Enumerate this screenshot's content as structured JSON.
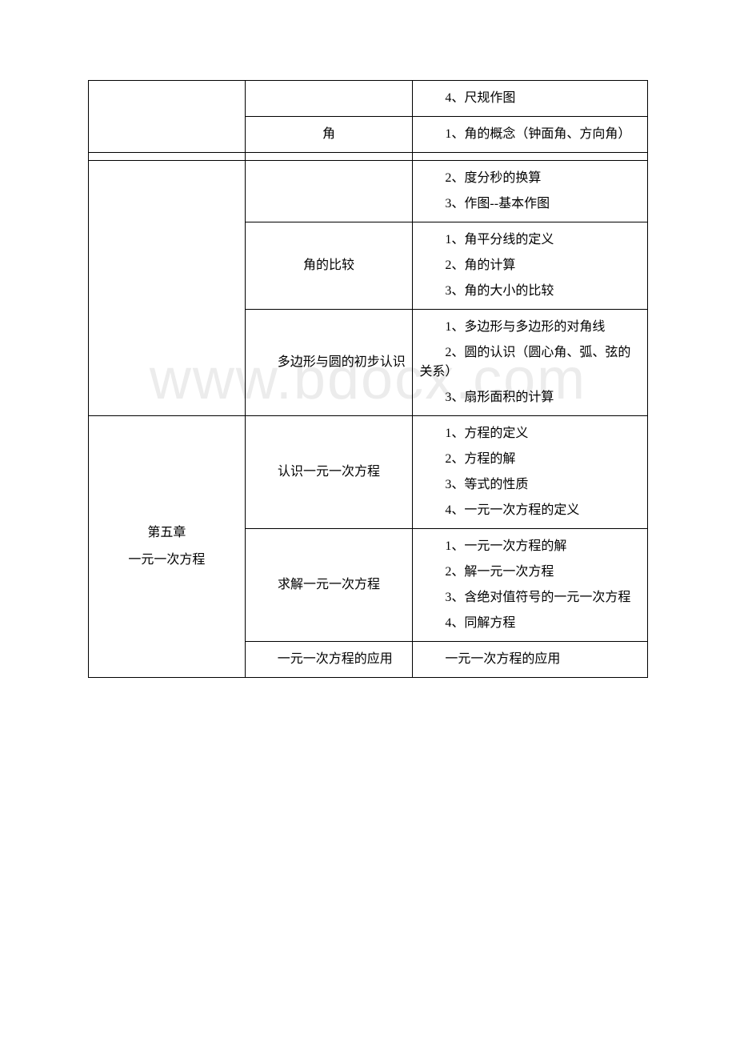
{
  "watermark": "www.bdocx.com",
  "table": {
    "rows": [
      {
        "col1": "",
        "col2": "",
        "col3_items": [
          "4、尺规作图"
        ]
      },
      {
        "col1": "",
        "col2": "角",
        "col3_items": [
          "1、角的概念（钟面角、方向角）"
        ]
      },
      {
        "spacer": true
      },
      {
        "col1": "",
        "col2": "",
        "col3_items": [
          "2、度分秒的换算",
          "3、作图--基本作图"
        ]
      },
      {
        "col1": "",
        "col2": "角的比较",
        "col3_items": [
          "1、角平分线的定义",
          "2、角的计算",
          "3、角的大小的比较"
        ]
      },
      {
        "col1": "",
        "col2": "多边形与圆的初步认识",
        "col3_items": [
          "1、多边形与多边形的对角线",
          "2、圆的认识（圆心角、弧、弦的关系）",
          "3、扇形面积的计算"
        ]
      },
      {
        "col1_lines": [
          "第五章",
          "一元一次方程"
        ],
        "col2": "认识一元一次方程",
        "col3_items": [
          "1、方程的定义",
          "2、方程的解",
          "3、等式的性质",
          "4、一元一次方程的定义"
        ],
        "rowspan": 3
      },
      {
        "col2": "求解一元一次方程",
        "col3_items": [
          "1、一元一次方程的解",
          "2、解一元一次方程",
          "3、含绝对值符号的一元一次方程",
          "4、同解方程"
        ]
      },
      {
        "col2": "一元一次方程的应用",
        "col3_items": [
          "一元一次方程的应用"
        ]
      }
    ]
  }
}
